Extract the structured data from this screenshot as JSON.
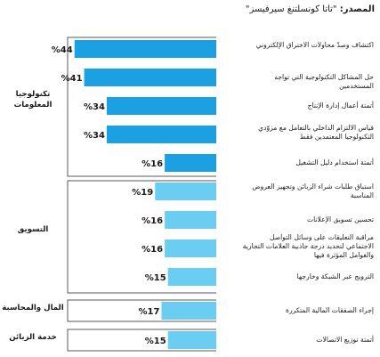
{
  "source": {
    "label": "المصدر:",
    "text": "\"تاتا كونسلتنغ سيرفيسز\""
  },
  "colors": {
    "it": "#1ba0e4",
    "other": "#6ccdf3",
    "frame": "#5a5a5a"
  },
  "chart_data": {
    "type": "bar",
    "orientation": "horizontal",
    "categories": [
      "اكتشاف وصدّ محاولات الاختراق الإلكتروني",
      "حل المشاكل التكنولوجية التي تواجه المستخدمين",
      "أتمتة أعمال إدارة الإنتاج",
      "قياس الالتزام الداخلي بالتعامل مع مزوّدي التكنولوجيا المعتمدين فقط",
      "أتمتة استخدام دليل التشغيل",
      "استباق طلبات شراء الزبائن وتجهيز العروض المناسبة",
      "تحسين تسويق الإعلانات",
      "مراقبة التعليقات على وسائل التواصل الاجتماعي لتحديد درجة جاذبية العلامات التجارية والعوامل المؤثرة فيها",
      "الترويج عبر الشبكة وخارجها",
      "إجراء الصفقات المالية المتكررة",
      "أتمتة توزيع الاتصالات"
    ],
    "values": [
      44,
      41,
      34,
      34,
      16,
      19,
      16,
      16,
      15,
      17,
      15
    ],
    "value_labels": [
      "%44",
      "%41",
      "%34",
      "%34",
      "%16",
      "%19",
      "%16",
      "%16",
      "%15",
      "%17",
      "%15"
    ],
    "groups": [
      {
        "name": "تكنولوجيا المعلومات",
        "start": 0,
        "end": 4
      },
      {
        "name": "التسويق",
        "start": 5,
        "end": 8
      },
      {
        "name": "المال والمحاسبة",
        "start": 9,
        "end": 9
      },
      {
        "name": "خدمة الزبائن",
        "start": 10,
        "end": 10
      }
    ],
    "xlim": [
      0,
      47
    ]
  }
}
